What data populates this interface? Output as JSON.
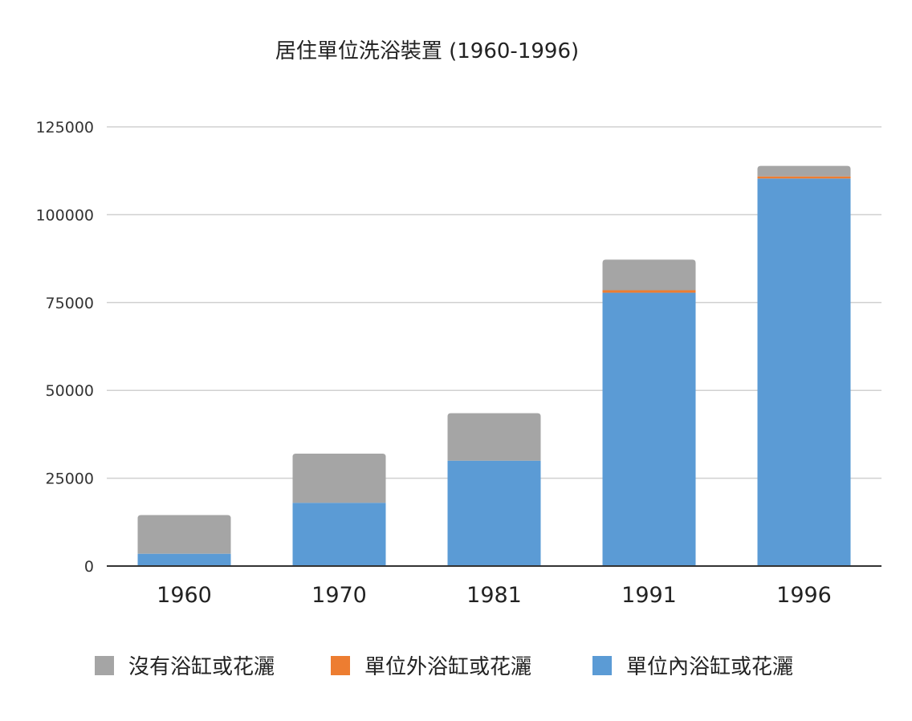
{
  "chart_data": {
    "type": "bar",
    "stacked": true,
    "title": "居住單位洗浴裝置 (1960-1996)",
    "xlabel": "",
    "ylabel": "",
    "categories": [
      "1960",
      "1970",
      "1981",
      "1991",
      "1996"
    ],
    "series": [
      {
        "name": "單位內浴缸或花灑",
        "color": "#5b9bd5",
        "values": [
          3500,
          18000,
          30000,
          77800,
          110300
        ]
      },
      {
        "name": "單位外浴缸或花灑",
        "color": "#ed7d31",
        "values": [
          0,
          0,
          0,
          700,
          600
        ]
      },
      {
        "name": "沒有浴缸或花灑",
        "color": "#a5a5a5",
        "values": [
          11000,
          14000,
          13500,
          8700,
          3000
        ]
      }
    ],
    "legend_order": [
      "沒有浴缸或花灑",
      "單位外浴缸或花灑",
      "單位內浴缸或花灑"
    ],
    "yticks": [
      "0",
      "25000",
      "50000",
      "75000",
      "100000",
      "125000"
    ],
    "ylim": [
      0,
      125000
    ],
    "grid": true,
    "legend_position": "bottom"
  }
}
